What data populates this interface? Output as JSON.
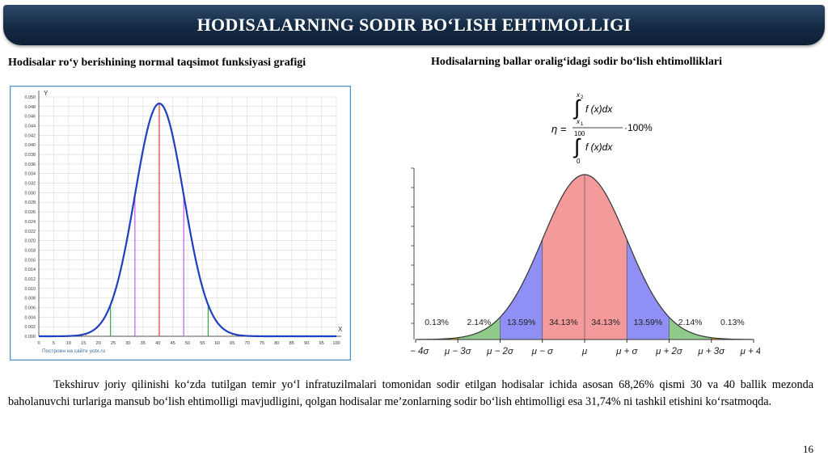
{
  "title": "HODISALARNING SODIR BO‘LISH EHTIMOLLIGI",
  "left_heading": "Hodisalar ro‘y berishining normal taqsimot funksiyasi grafigi",
  "right_heading": "Hodisalarning ballar oralig‘idagi sodir bo‘lish ehtimolliklari",
  "formula": {
    "eta": "η =",
    "num_upper": "x",
    "num_upper_sub": "2",
    "num_lower": "x",
    "num_lower_sub": "1",
    "num_expr": "f (x)dx",
    "den_upper": "100",
    "den_lower": "0",
    "den_expr": "f (x)dx",
    "factor": "·100%"
  },
  "paragraph": "Tekshiruv joriy qilinishi ko‘zda tutilgan temir yo‘l infratuzilmalari tomonidan sodir etilgan hodisalar ichida asosan 68,26% qismi 30 va 40 ballik mezonda baholanuvchi turlariga mansub bo‘lish ehtimolligi mavjudligini, qolgan hodisalar me’zonlarning sodir bo‘lish ehtimolligi esa 31,74% ni tashkil etishini ko‘rsatmoqda.",
  "page_number": "16",
  "chart_data": [
    {
      "type": "line",
      "title": "",
      "xlabel": "X",
      "ylabel": "Y",
      "watermark": "Построен на сайте yotx.ru",
      "xlim": [
        0,
        100
      ],
      "ylim": [
        0,
        0.05
      ],
      "x_ticks": [
        "0",
        "5",
        "10",
        "15",
        "20",
        "25",
        "30",
        "35",
        "40",
        "45",
        "50",
        "55",
        "60",
        "65",
        "70",
        "75",
        "80",
        "85",
        "90",
        "95",
        "100"
      ],
      "y_ticks": [
        "0.000",
        "0.002",
        "0.004",
        "0.006",
        "0.008",
        "0.010",
        "0.012",
        "0.014",
        "0.016",
        "0.018",
        "0.020",
        "0.022",
        "0.024",
        "0.026",
        "0.028",
        "0.030",
        "0.032",
        "0.034",
        "0.036",
        "0.038",
        "0.040",
        "0.042",
        "0.044",
        "0.046",
        "0.048",
        "0.050"
      ],
      "grid": true,
      "curve": {
        "mean": 40.5,
        "sd": 8.2
      },
      "vertical_lines": [
        {
          "x": 40.5,
          "color": "#d03030"
        },
        {
          "x": 32.3,
          "color": "#c050e0"
        },
        {
          "x": 48.7,
          "color": "#c050e0"
        },
        {
          "x": 24.1,
          "color": "#2a9a3a"
        },
        {
          "x": 56.9,
          "color": "#2a9a3a"
        },
        {
          "x": 15.9,
          "color": "#e8a020"
        },
        {
          "x": 65.1,
          "color": "#e8a020"
        }
      ],
      "colors": {
        "curve": "#1f3fc0",
        "grid": "#d8d8d8",
        "frame": "#4a90c8"
      }
    },
    {
      "type": "area",
      "title": "",
      "x_ticks": [
        "μ − 4σ",
        "μ − 3σ",
        "μ − 2σ",
        "μ − σ",
        "μ",
        "μ + σ",
        "μ + 2σ",
        "μ + 3σ",
        "μ + 4σ"
      ],
      "xlim": [
        -4,
        4
      ],
      "grid": false,
      "bands": [
        {
          "from": -4,
          "to": -3,
          "label": "0.13%",
          "color": "#f0a000"
        },
        {
          "from": -3,
          "to": -2,
          "label": "2.14%",
          "color": "#8fca8a"
        },
        {
          "from": -2,
          "to": -1,
          "label": "13.59%",
          "color": "#8f8ff5"
        },
        {
          "from": -1,
          "to": 0,
          "label": "34.13%",
          "color": "#f59a9a"
        },
        {
          "from": 0,
          "to": 1,
          "label": "34.13%",
          "color": "#f59a9a"
        },
        {
          "from": 1,
          "to": 2,
          "label": "13.59%",
          "color": "#8f8ff5"
        },
        {
          "from": 2,
          "to": 3,
          "label": "2.14%",
          "color": "#8fca8a"
        },
        {
          "from": 3,
          "to": 4,
          "label": "0.13%",
          "color": "#f0a000"
        }
      ]
    }
  ]
}
